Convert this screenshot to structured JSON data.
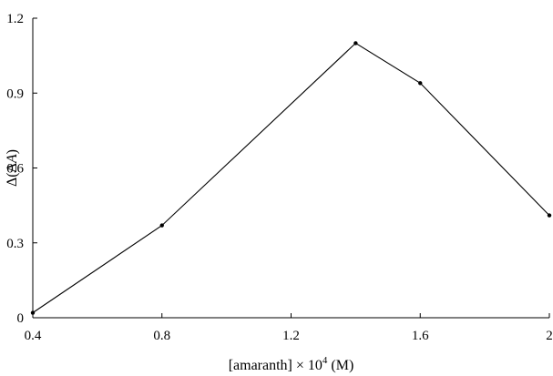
{
  "chart_data": {
    "type": "line",
    "title": "",
    "xlabel": "[amaranth] × 10",
    "xlabel_exponent": "4",
    "xlabel_unit": "(M)",
    "ylabel_prefix": "Δ(Δ",
    "ylabel_var": "A",
    "ylabel_suffix": ")",
    "xlim": [
      0.4,
      2.0
    ],
    "ylim": [
      0,
      1.2
    ],
    "x_ticks": [
      0.4,
      0.8,
      1.2,
      1.6,
      2.0
    ],
    "x_tick_labels": [
      "0.4",
      "0.8",
      "1.2",
      "1.6",
      "2"
    ],
    "y_ticks": [
      0,
      0.3,
      0.6,
      0.9,
      1.2
    ],
    "y_tick_labels": [
      "0",
      "0.3",
      "0.6",
      "0.9",
      "1.2"
    ],
    "grid": false,
    "series": [
      {
        "x": [
          0.4,
          0.8,
          1.4,
          1.6,
          2.0
        ],
        "y": [
          0.02,
          0.37,
          1.1,
          0.94,
          0.41
        ]
      }
    ]
  }
}
